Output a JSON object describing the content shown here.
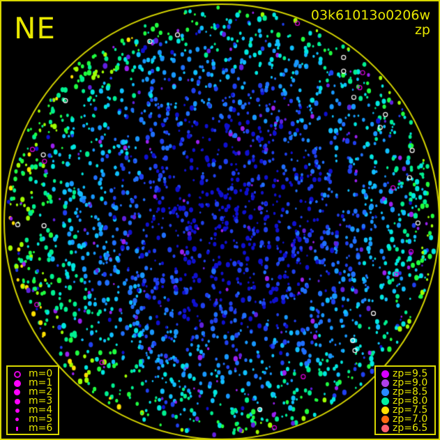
{
  "direction_label": "NE",
  "title": "03k61013o0206w",
  "subtitle": "zp",
  "colors": {
    "frame": "#d8d800",
    "horizon_circle": "#d8d800",
    "background": "#000000"
  },
  "magnitude_legend": [
    {
      "label": "m=0",
      "symbol": "open-circle",
      "color": "#e000e0"
    },
    {
      "label": "m=1",
      "symbol": "dot",
      "color": "#ff00ff"
    },
    {
      "label": "m=2",
      "symbol": "dot",
      "color": "#ff00ff"
    },
    {
      "label": "m=3",
      "symbol": "dot",
      "color": "#ff00ff"
    },
    {
      "label": "m=4",
      "symbol": "dot",
      "color": "#ff00ff"
    },
    {
      "label": "m=5",
      "symbol": "dot",
      "color": "#ff00ff"
    },
    {
      "label": "m=6",
      "symbol": "dot",
      "color": "#ff00ff"
    }
  ],
  "zp_legend": [
    {
      "label": "zp=9.5",
      "color": "#d800ff"
    },
    {
      "label": "zp=9.0",
      "color": "#b040e8"
    },
    {
      "label": "zp=8.5",
      "color": "#2888ff"
    },
    {
      "label": "zp=8.0",
      "color": "#00f0a0"
    },
    {
      "label": "zp=7.5",
      "color": "#ffe000"
    },
    {
      "label": "zp=7.0",
      "color": "#ff6a10"
    },
    {
      "label": "zp=6.5",
      "color": "#ff6070"
    }
  ]
}
